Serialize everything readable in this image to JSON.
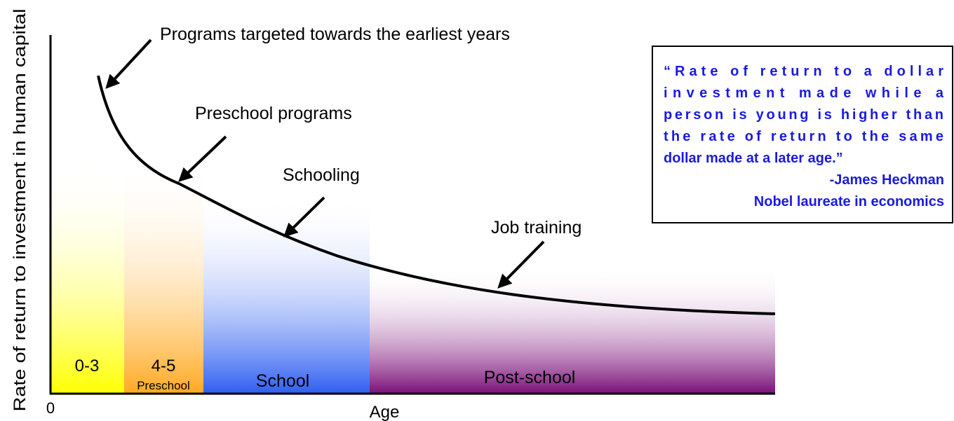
{
  "axes": {
    "y_label": "Rate of return to investment in human capital",
    "x_label": "Age",
    "origin": "0"
  },
  "bands": [
    {
      "label": "0-3"
    },
    {
      "label": "4-5",
      "sublabel": "Preschool"
    },
    {
      "label": "School"
    },
    {
      "label": "Post-school"
    }
  ],
  "annotations": [
    "Programs targeted towards the earliest years",
    "Preschool programs",
    "Schooling",
    "Job training"
  ],
  "quote": {
    "lines": [
      "“Rate of return to a dollar",
      "investment made while a",
      "person is young is higher than",
      "the rate of return to the same",
      "dollar made at a later age.”"
    ],
    "author": "-James Heckman",
    "credential": "Nobel laureate in economics"
  }
}
